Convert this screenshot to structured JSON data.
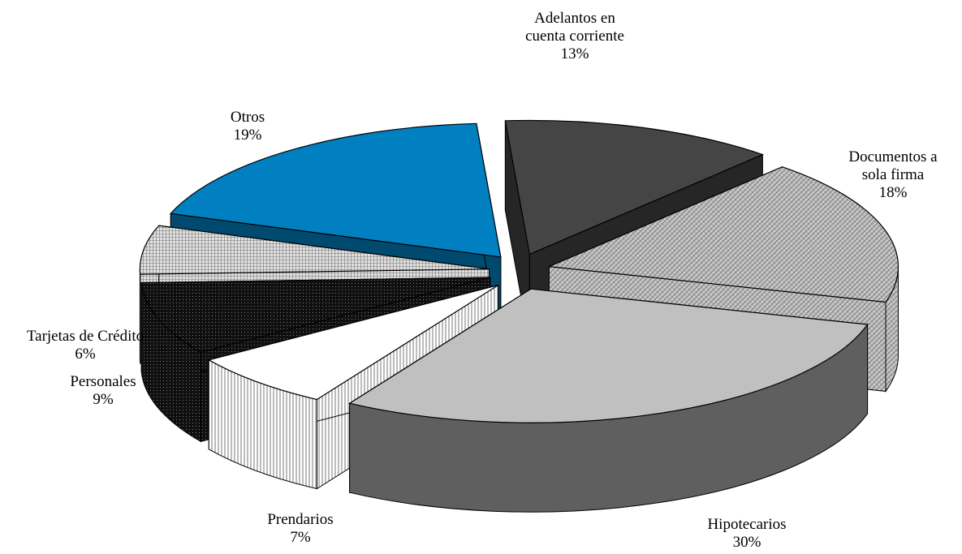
{
  "chart_data": {
    "type": "pie",
    "style": "3d-exploded",
    "legend": "none",
    "slices": [
      {
        "name": "Adelantos en cuenta corriente",
        "label_lines": [
          "Adelantos en",
          "cuenta corriente"
        ],
        "pct_label": "13%",
        "value": 13,
        "color": "#454545"
      },
      {
        "name": "Documentos a sola firma",
        "label_lines": [
          "Documentos a",
          "sola firma"
        ],
        "pct_label": "18%",
        "value": 18,
        "color": "#b8b8b8"
      },
      {
        "name": "Hipotecarios",
        "label_lines": [
          "Hipotecarios"
        ],
        "pct_label": "30%",
        "value": 30,
        "color": "#c0c0c0"
      },
      {
        "name": "Prendarios",
        "label_lines": [
          "Prendarios"
        ],
        "pct_label": "7%",
        "value": 7,
        "color": "#ffffff"
      },
      {
        "name": "Personales",
        "label_lines": [
          "Personales"
        ],
        "pct_label": "9%",
        "value": 9,
        "color": "#111111"
      },
      {
        "name": "Tarjetas de Crédito",
        "label_lines": [
          "Tarjetas de Crédito"
        ],
        "pct_label": "6%",
        "value": 6,
        "color": "#d8d8d8"
      },
      {
        "name": "Otros",
        "label_lines": [
          "Otros"
        ],
        "pct_label": "19%",
        "value": 19,
        "color": "#0080c0"
      }
    ]
  }
}
